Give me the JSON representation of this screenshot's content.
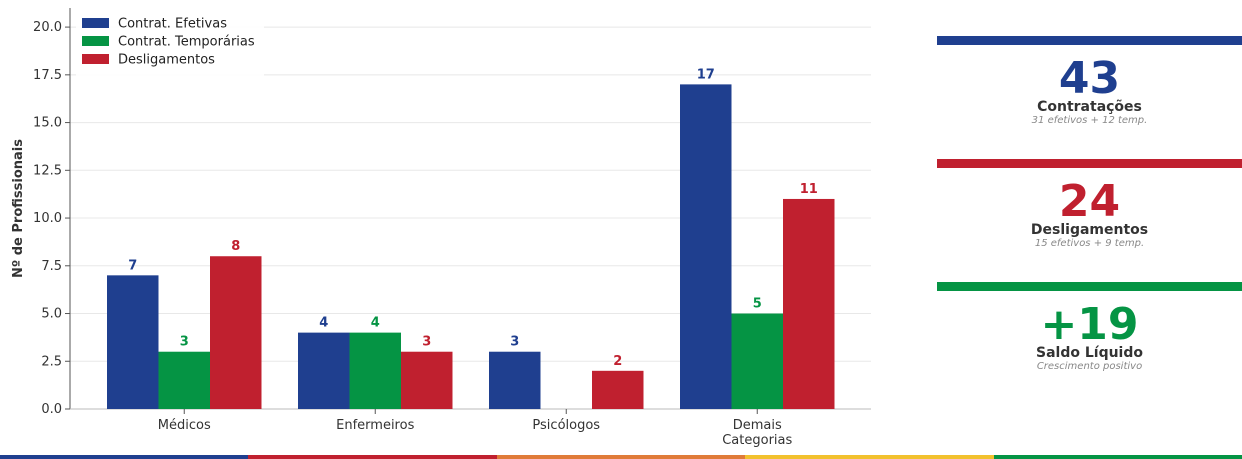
{
  "chart_data": {
    "type": "bar",
    "categories": [
      "Médicos",
      "Enfermeiros",
      "Psicólogos",
      "Demais\nCategorias"
    ],
    "series": [
      {
        "name": "Contrat. Efetivas",
        "values": [
          7,
          4,
          3,
          17
        ],
        "color": "#1f3f8f"
      },
      {
        "name": "Contrat. Temporárias",
        "values": [
          3,
          4,
          0,
          5
        ],
        "color": "#059444"
      },
      {
        "name": "Desligamentos",
        "values": [
          8,
          3,
          2,
          11
        ],
        "color": "#c0202f"
      }
    ],
    "ylabel": "Nº de Profissionais",
    "xlabel": "",
    "ylim": [
      0,
      21
    ],
    "yticks": [
      0.0,
      2.5,
      5.0,
      7.5,
      10.0,
      12.5,
      15.0,
      17.5,
      20.0
    ],
    "legend": "top-left",
    "grid": "horizontal"
  },
  "kpis": [
    {
      "value": "43",
      "label": "Contratações",
      "sub": "31 efetivos + 12 temp.",
      "color": "#1f3f8f"
    },
    {
      "value": "24",
      "label": "Desligamentos",
      "sub": "15 efetivos + 9 temp.",
      "color": "#c0202f"
    },
    {
      "value": "+19",
      "label": "Saldo Líquido",
      "sub": "Crescimento positivo",
      "color": "#059444"
    }
  ],
  "footer_colors": [
    "#1f3f8f",
    "#c0202f",
    "#e07b39",
    "#f2c12e",
    "#059444"
  ]
}
